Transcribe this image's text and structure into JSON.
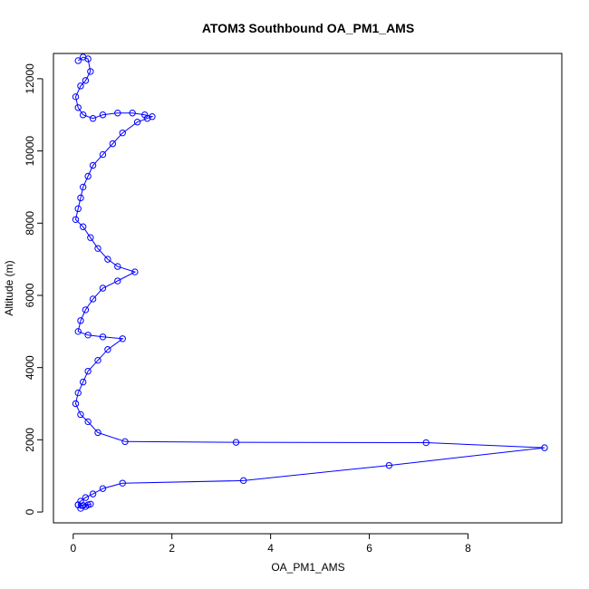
{
  "chart_data": {
    "type": "scatter",
    "title": "ATOM3 Southbound OA_PM1_AMS",
    "xlabel": "OA_PM1_AMS",
    "ylabel": "Altitude (m)",
    "xlim": [
      -0.4,
      9.9
    ],
    "ylim": [
      -300,
      12700
    ],
    "x_ticks": [
      0,
      2,
      4,
      6,
      8
    ],
    "y_ticks": [
      0,
      2000,
      4000,
      6000,
      8000,
      10000,
      12000
    ],
    "grid": false,
    "legend": "none",
    "color": "#0000ff",
    "marker": "open-circle",
    "connect_points": true,
    "series": [
      {
        "x": [
          0.1,
          0.2,
          0.3,
          0.35,
          0.25,
          0.15,
          0.05,
          0.1,
          0.2,
          0.4,
          0.6,
          0.9,
          1.2,
          1.45,
          1.6,
          1.5,
          1.3,
          1.0,
          0.8,
          0.6,
          0.4,
          0.3,
          0.2,
          0.15,
          0.1,
          0.05,
          0.2,
          0.35,
          0.5,
          0.7,
          0.9,
          1.25,
          0.9,
          0.6,
          0.4,
          0.25,
          0.15,
          0.1,
          0.3,
          0.6,
          1.0,
          0.7,
          0.5,
          0.3,
          0.2,
          0.1,
          0.05,
          0.15,
          0.3,
          0.5,
          1.05,
          3.3,
          7.15,
          9.55,
          6.4,
          3.45,
          1.0,
          0.6,
          0.4,
          0.25,
          0.15,
          0.1,
          0.2,
          0.3,
          0.35,
          0.25,
          0.15,
          0.1
        ],
        "y": [
          12500,
          12600,
          12550,
          12200,
          11950,
          11800,
          11500,
          11200,
          11000,
          10900,
          11000,
          11050,
          11050,
          11000,
          10950,
          10900,
          10800,
          10500,
          10200,
          9900,
          9600,
          9300,
          9000,
          8700,
          8400,
          8100,
          7900,
          7600,
          7300,
          7000,
          6800,
          6650,
          6400,
          6200,
          5900,
          5600,
          5300,
          5000,
          4900,
          4850,
          4800,
          4500,
          4200,
          3900,
          3600,
          3300,
          3000,
          2700,
          2500,
          2200,
          1950,
          1930,
          1920,
          1780,
          1290,
          870,
          800,
          650,
          500,
          400,
          300,
          200,
          180,
          200,
          220,
          150,
          100,
          200
        ]
      }
    ]
  }
}
